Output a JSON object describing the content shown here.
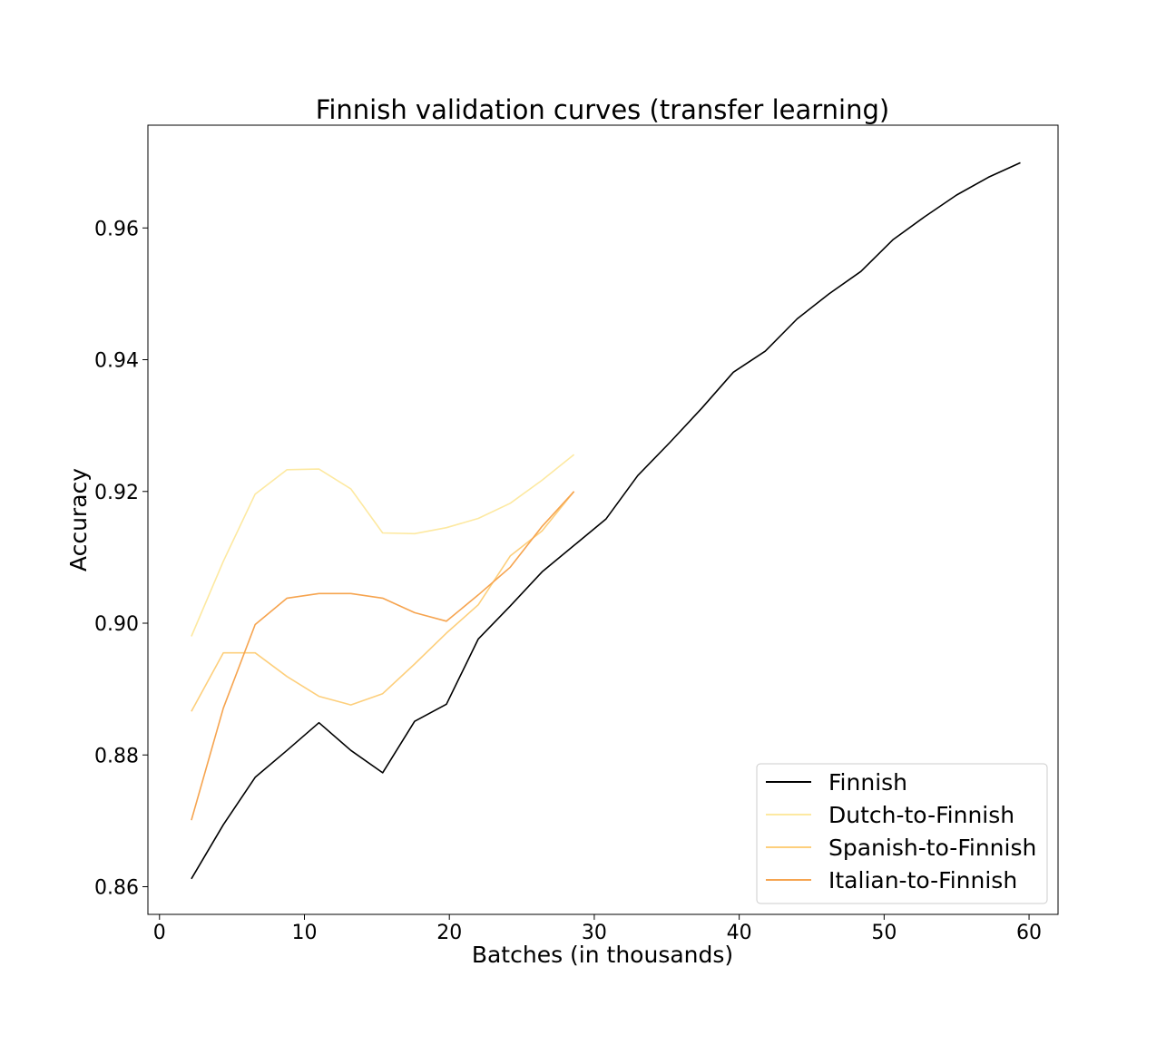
{
  "chart_data": {
    "type": "line",
    "title": "Finnish validation curves (transfer learning)",
    "xlabel": "Batches (in thousands)",
    "ylabel": "Accuracy",
    "xlim": [
      -0.8,
      62
    ],
    "ylim": [
      0.8558,
      0.9756
    ],
    "xticks": [
      0,
      10,
      20,
      30,
      40,
      50,
      60
    ],
    "yticks": [
      0.86,
      0.88,
      0.9,
      0.92,
      0.94,
      0.96
    ],
    "xtick_labels": [
      "0",
      "10",
      "20",
      "30",
      "40",
      "50",
      "60"
    ],
    "ytick_labels": [
      "0.86",
      "0.88",
      "0.90",
      "0.92",
      "0.94",
      "0.96"
    ],
    "grid": false,
    "legend_position": "lower-right",
    "series": [
      {
        "name": "Finnish",
        "color": "#000000",
        "x": [
          2.2,
          4.4,
          6.6,
          8.8,
          11.0,
          13.2,
          15.4,
          17.6,
          19.8,
          22.0,
          24.2,
          26.4,
          28.6,
          30.8,
          33.0,
          35.2,
          37.4,
          39.6,
          41.8,
          44.0,
          46.2,
          48.4,
          50.6,
          52.8,
          55.0,
          57.2,
          59.4
        ],
        "y": [
          0.8612,
          0.8694,
          0.8766,
          0.8807,
          0.8849,
          0.8807,
          0.8773,
          0.8851,
          0.8877,
          0.8976,
          0.9026,
          0.9078,
          0.9118,
          0.9158,
          0.9224,
          0.9274,
          0.9326,
          0.9381,
          0.9413,
          0.9462,
          0.95,
          0.9534,
          0.9582,
          0.9617,
          0.965,
          0.9677,
          0.9699
        ]
      },
      {
        "name": "Dutch-to-Finnish",
        "color": "#fde9a1",
        "x": [
          2.2,
          4.4,
          6.6,
          8.8,
          11.0,
          13.2,
          15.4,
          17.6,
          19.8,
          22.0,
          24.2,
          26.4,
          28.6
        ],
        "y": [
          0.898,
          0.9094,
          0.9196,
          0.9233,
          0.9234,
          0.9204,
          0.9137,
          0.9136,
          0.9145,
          0.9159,
          0.9182,
          0.9217,
          0.9256
        ]
      },
      {
        "name": "Spanish-to-Finnish",
        "color": "#fdcf7c",
        "x": [
          2.2,
          4.4,
          6.6,
          8.8,
          11.0,
          13.2,
          15.4,
          17.6,
          19.8,
          22.0,
          24.2,
          26.4,
          28.6
        ],
        "y": [
          0.8866,
          0.8955,
          0.8955,
          0.8919,
          0.8889,
          0.8876,
          0.8893,
          0.8938,
          0.8985,
          0.9028,
          0.9102,
          0.914,
          0.92
        ]
      },
      {
        "name": "Italian-to-Finnish",
        "color": "#f6a44f",
        "x": [
          2.2,
          4.4,
          6.6,
          8.8,
          11.0,
          13.2,
          15.4,
          17.6,
          19.8,
          22.0,
          24.2,
          26.4,
          28.6
        ],
        "y": [
          0.8701,
          0.8871,
          0.8998,
          0.9038,
          0.9045,
          0.9045,
          0.9038,
          0.9016,
          0.9003,
          0.9043,
          0.9085,
          0.9147,
          0.92
        ]
      }
    ]
  }
}
